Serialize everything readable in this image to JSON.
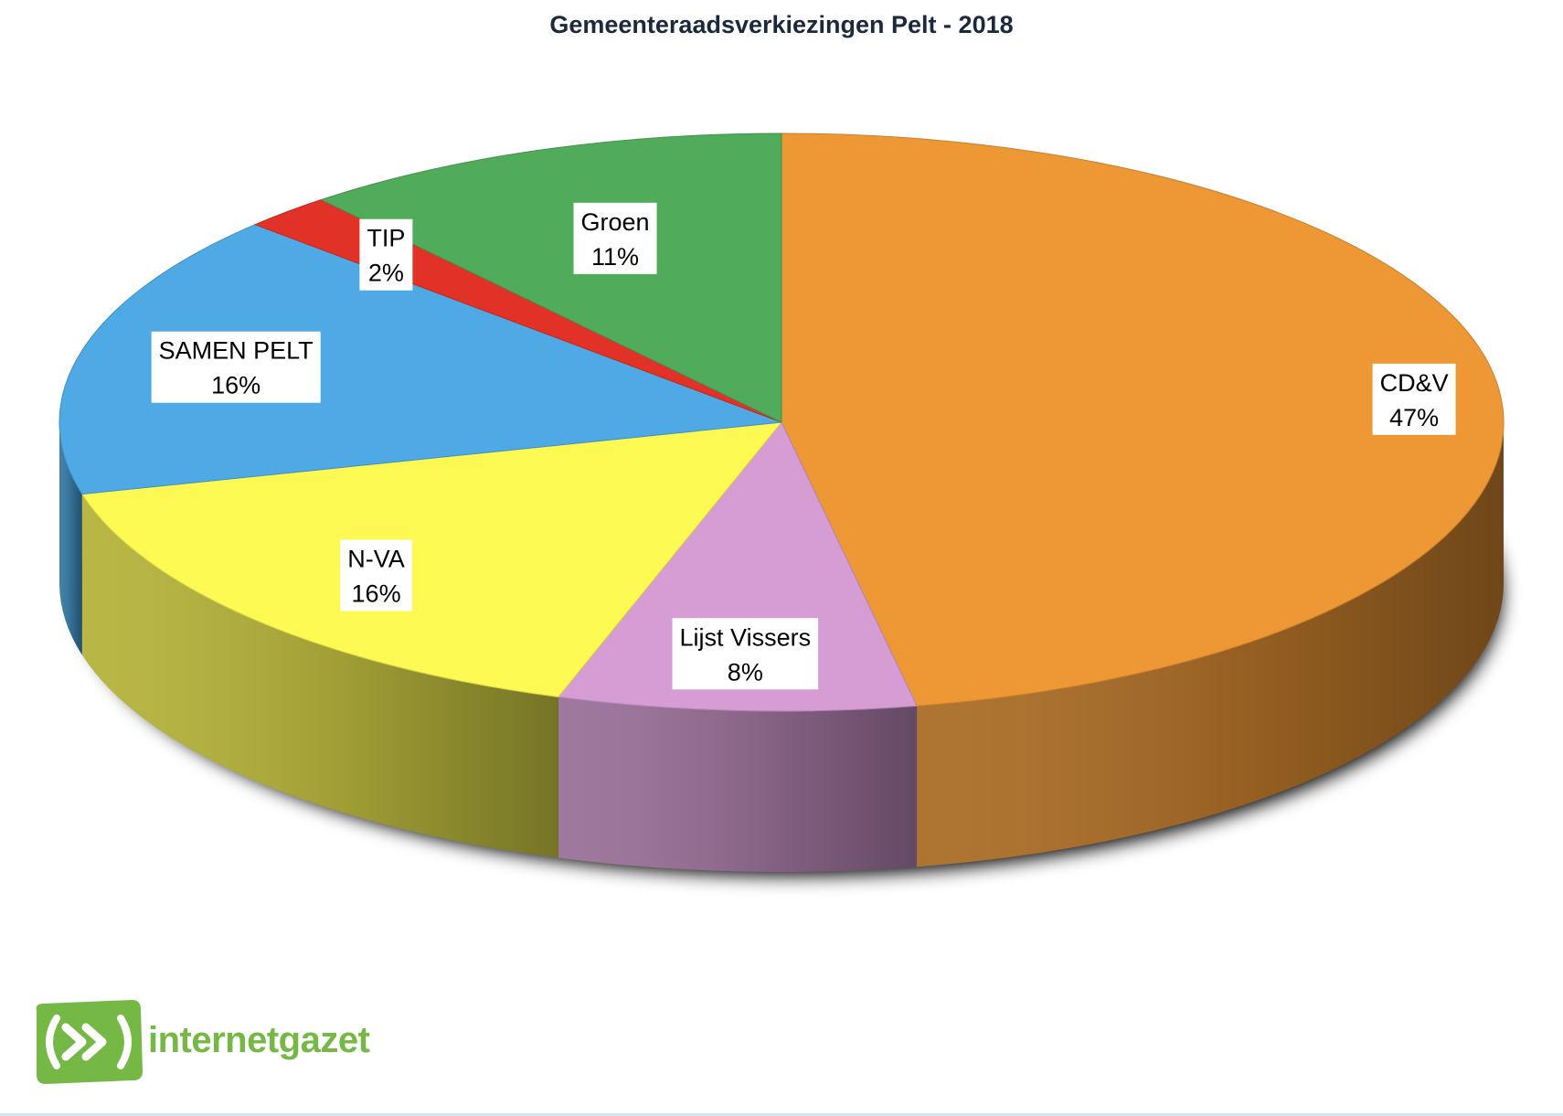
{
  "chart_data": {
    "type": "pie",
    "title": "Gemeenteraadsverkiezingen Pelt - 2018",
    "slices": [
      {
        "label": "CD&V",
        "value": 47,
        "value_label": "47%",
        "color": "#ed9735"
      },
      {
        "label": "Lijst Vissers",
        "value": 8,
        "value_label": "8%",
        "color": "#d69dd4"
      },
      {
        "label": "N-VA",
        "value": 16,
        "value_label": "16%",
        "color": "#fbf952"
      },
      {
        "label": "SAMEN PELT",
        "value": 16,
        "value_label": "16%",
        "color": "#4ea9e4"
      },
      {
        "label": "TIP",
        "value": 2,
        "value_label": "2%",
        "color": "#e23127"
      },
      {
        "label": "Groen",
        "value": 11,
        "value_label": "11%",
        "color": "#50ab5b"
      }
    ],
    "style": "3d-tilted",
    "legend": "none"
  },
  "logo": {
    "text": "internetgazet",
    "color": "#76b845",
    "icon": "play-forward-icon"
  }
}
